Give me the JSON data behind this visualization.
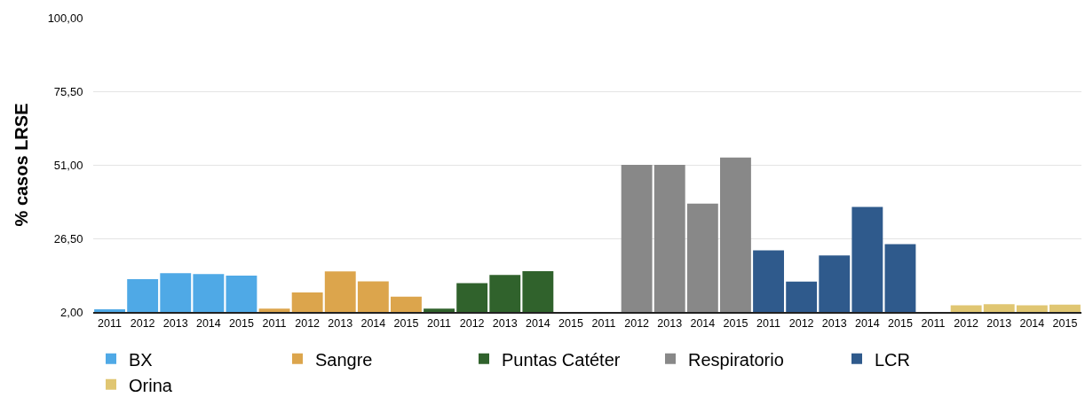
{
  "chart_data": {
    "type": "bar",
    "ylabel": "% casos LRSE",
    "categories": [
      "2011",
      "2012",
      "2013",
      "2014",
      "2015",
      "2011",
      "2012",
      "2013",
      "2014",
      "2015",
      "2011",
      "2012",
      "2013",
      "2014",
      "2015",
      "2011",
      "2012",
      "2013",
      "2014",
      "2015",
      "2011",
      "2012",
      "2013",
      "2014",
      "2015",
      "2011",
      "2012",
      "2013",
      "2014",
      "2015"
    ],
    "series": [
      {
        "name": "BX",
        "color": "#4fa9e6",
        "values": [
          2.9,
          12.9,
          14.9,
          14.6,
          14.1,
          null,
          null,
          null,
          null,
          null,
          null,
          null,
          null,
          null,
          null,
          null,
          null,
          null,
          null,
          null,
          null,
          null,
          null,
          null,
          null,
          null,
          null,
          null,
          null,
          null
        ]
      },
      {
        "name": "Sangre",
        "color": "#dca54c",
        "values": [
          null,
          null,
          null,
          null,
          null,
          3.1,
          8.5,
          15.5,
          12.2,
          7.1,
          null,
          null,
          null,
          null,
          null,
          null,
          null,
          null,
          null,
          null,
          null,
          null,
          null,
          null,
          null,
          null,
          null,
          null,
          null,
          null
        ]
      },
      {
        "name": "Puntas Catéter",
        "color": "#30622c",
        "values": [
          null,
          null,
          null,
          null,
          null,
          null,
          null,
          null,
          null,
          null,
          3.1,
          11.6,
          14.3,
          15.6,
          null,
          null,
          null,
          null,
          null,
          null,
          null,
          null,
          null,
          null,
          null,
          null,
          null,
          null,
          null,
          null
        ]
      },
      {
        "name": "Respiratorio",
        "color": "#888888",
        "values": [
          null,
          null,
          null,
          null,
          null,
          null,
          null,
          null,
          null,
          null,
          null,
          null,
          null,
          null,
          null,
          null,
          51,
          51,
          38.1,
          53.4,
          null,
          null,
          null,
          null,
          null,
          null,
          null,
          null,
          null,
          null
        ]
      },
      {
        "name": "LCR",
        "color": "#2f5a8c",
        "values": [
          null,
          null,
          null,
          null,
          null,
          null,
          null,
          null,
          null,
          null,
          null,
          null,
          null,
          null,
          null,
          null,
          null,
          null,
          null,
          null,
          22.5,
          12.1,
          20.8,
          37,
          24.6,
          null,
          null,
          null,
          null,
          null
        ]
      },
      {
        "name": "Orina",
        "color": "#e0c672",
        "values": [
          null,
          null,
          null,
          null,
          null,
          null,
          null,
          null,
          null,
          null,
          null,
          null,
          null,
          null,
          null,
          null,
          null,
          null,
          null,
          null,
          null,
          null,
          null,
          null,
          null,
          null,
          4.2,
          4.6,
          4.2,
          4.4
        ]
      }
    ],
    "ylim": [
      2,
      100
    ],
    "yticks": [
      {
        "value": 2,
        "label": "2,00"
      },
      {
        "value": 26.5,
        "label": "26,50"
      },
      {
        "value": 51,
        "label": "51,00"
      },
      {
        "value": 75.5,
        "label": "75,50"
      },
      {
        "value": 100,
        "label": "100,00"
      }
    ],
    "grid": "y",
    "legend": "bottom"
  }
}
